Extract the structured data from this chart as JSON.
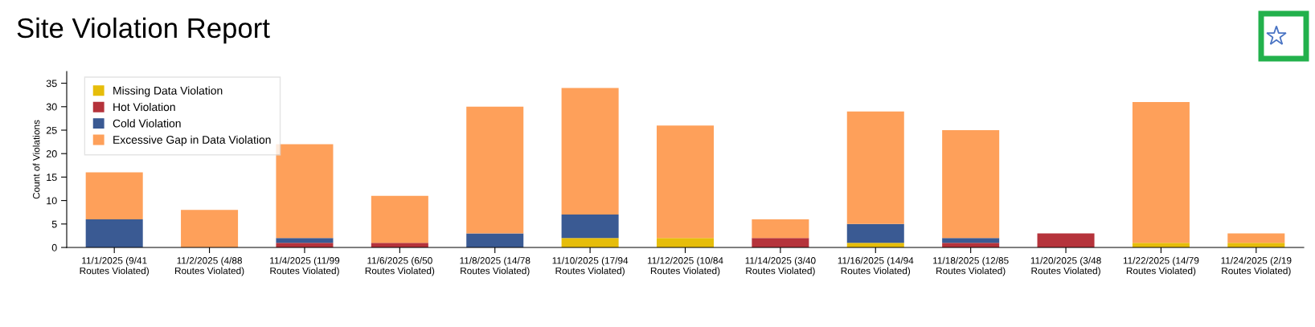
{
  "chart_data": {
    "type": "bar",
    "title": "Site Violation Report",
    "ylabel": "Count of Violations",
    "categories": [
      "11/1/2025 (9/41\nRoutes Violated)",
      "11/2/2025 (4/88\nRoutes Violated)",
      "11/4/2025 (11/99\nRoutes Violated)",
      "11/6/2025 (6/50\nRoutes Violated)",
      "11/8/2025 (14/78\nRoutes Violated)",
      "11/10/2025 (17/94\nRoutes Violated)",
      "11/12/2025 (10/84\nRoutes Violated)",
      "11/14/2025 (3/40\nRoutes Violated)",
      "11/16/2025 (14/94\nRoutes Violated)",
      "11/18/2025 (12/85\nRoutes Violated)",
      "11/20/2025 (3/48\nRoutes Violated)",
      "11/22/2025 (14/79\nRoutes Violated)",
      "11/24/2025 (2/19\nRoutes Violated)"
    ],
    "stacked": true,
    "series": [
      {
        "name": "Missing Data Violation",
        "color": "#e6bd0a",
        "values": [
          0,
          0,
          0,
          0,
          0,
          2,
          2,
          0,
          1,
          0,
          0,
          1,
          1
        ]
      },
      {
        "name": "Hot Violation",
        "color": "#b5333b",
        "values": [
          0,
          0,
          1,
          1,
          0,
          0,
          0,
          2,
          0,
          1,
          3,
          0,
          0
        ]
      },
      {
        "name": "Cold Violation",
        "color": "#3a5a93",
        "values": [
          6,
          0,
          1,
          0,
          3,
          5,
          0,
          0,
          4,
          1,
          0,
          0,
          0
        ]
      },
      {
        "name": "Excessive Gap in Data Violation",
        "color": "#fea05a",
        "values": [
          10,
          8,
          20,
          10,
          27,
          27,
          24,
          4,
          24,
          23,
          0,
          30,
          2
        ]
      }
    ],
    "ylim": [
      0,
      37.5
    ],
    "yticks": [
      0,
      5,
      10,
      15,
      20,
      25,
      30,
      35
    ],
    "grid": false,
    "legend": "top left"
  }
}
